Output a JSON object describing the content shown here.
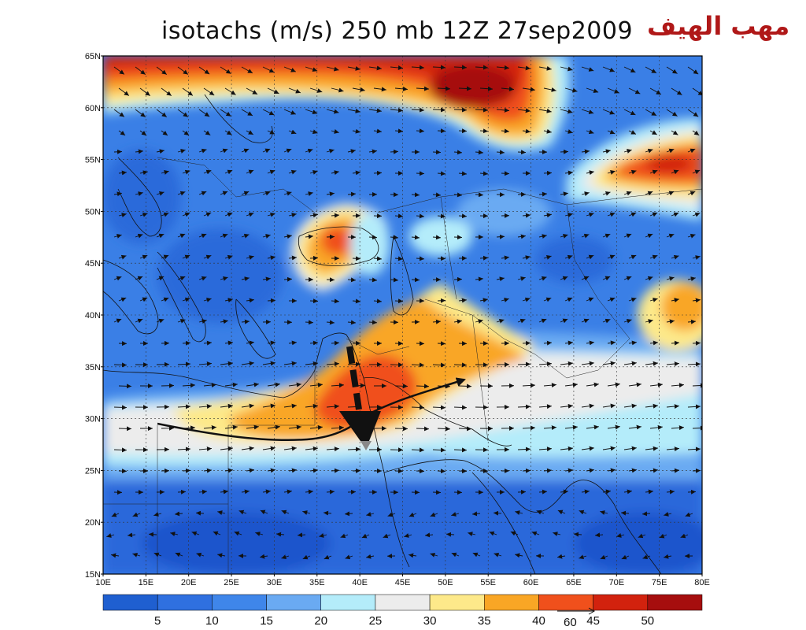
{
  "title": "isotachs (m/s) 250 mb 12Z 27sep2009",
  "watermark": "مهب الهيف",
  "map": {
    "lat_labels": [
      "65N",
      "60N",
      "55N",
      "50N",
      "45N",
      "40N",
      "35N",
      "30N",
      "25N",
      "20N",
      "15N"
    ],
    "lon_labels": [
      "10E",
      "15E",
      "20E",
      "25E",
      "30E",
      "35E",
      "40E",
      "45E",
      "50E",
      "55E",
      "60E",
      "65E",
      "70E",
      "75E",
      "80E"
    ],
    "lon_range": [
      10,
      80
    ],
    "lat_range": [
      15,
      65
    ],
    "grid_style": "dotted"
  },
  "colorbar": {
    "labels": [
      "5",
      "10",
      "15",
      "20",
      "25",
      "30",
      "35",
      "40",
      "45",
      "50"
    ],
    "colors": [
      "#1f5fd0",
      "#2f70e0",
      "#3f86ea",
      "#6aaaf2",
      "#b4ecfa",
      "#ececec",
      "#fde98a",
      "#f9a625",
      "#f0501c",
      "#d2220e",
      "#a60e0e"
    ],
    "reference_vector": "60"
  }
}
